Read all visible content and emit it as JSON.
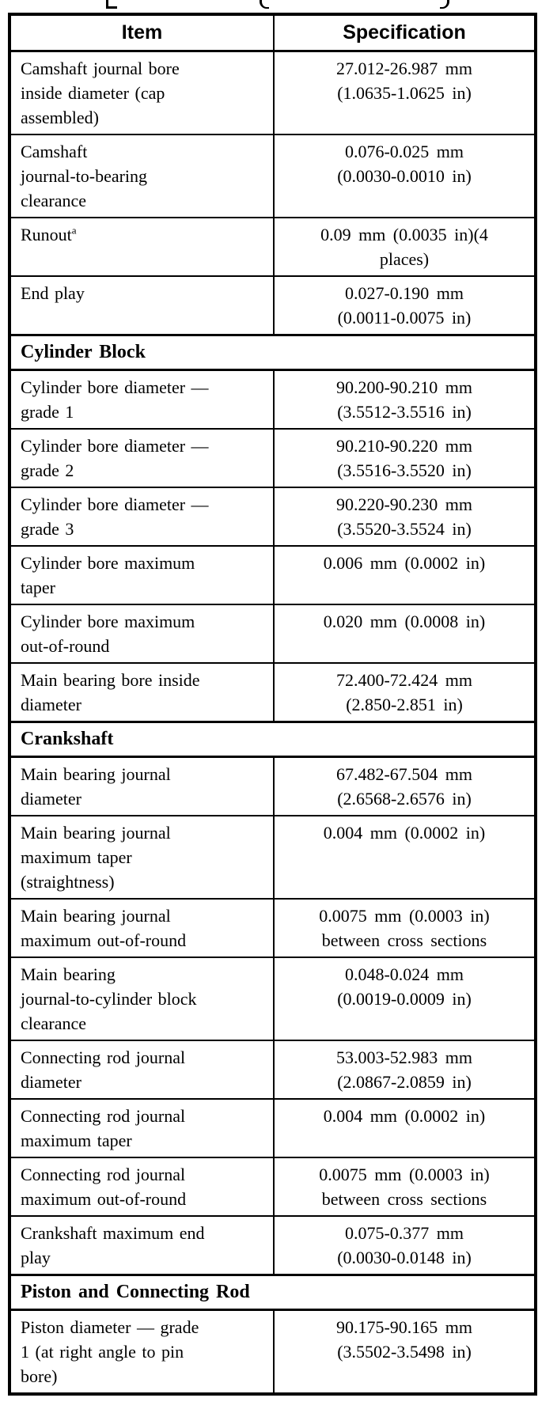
{
  "table": {
    "headers": [
      "Item",
      "Specification"
    ],
    "rows": [
      {
        "type": "data",
        "item": "Camshaft journal bore\ninside diameter (cap\nassembled)",
        "spec": "27.012-26.987 mm\n(1.0635-1.0625 in)"
      },
      {
        "type": "data",
        "item": "Camshaft\njournal-to-bearing\nclearance",
        "spec": "0.076-0.025 mm\n(0.0030-0.0010 in)"
      },
      {
        "type": "data",
        "item": "Runout",
        "superscript": "a",
        "spec": "0.09 mm (0.0035 in)(4\nplaces)"
      },
      {
        "type": "data",
        "item": "End play",
        "spec": "0.027-0.190 mm\n(0.0011-0.0075 in)"
      },
      {
        "type": "section",
        "title": "Cylinder Block"
      },
      {
        "type": "data",
        "item": "Cylinder bore diameter —\ngrade 1",
        "spec": "90.200-90.210 mm\n(3.5512-3.5516 in)"
      },
      {
        "type": "data",
        "item": "Cylinder bore diameter —\ngrade 2",
        "spec": "90.210-90.220 mm\n(3.5516-3.5520 in)"
      },
      {
        "type": "data",
        "item": "Cylinder bore diameter —\ngrade 3",
        "spec": "90.220-90.230 mm\n(3.5520-3.5524 in)"
      },
      {
        "type": "data",
        "item": "Cylinder bore maximum\ntaper",
        "spec": "0.006 mm (0.0002 in)"
      },
      {
        "type": "data",
        "item": "Cylinder bore maximum\nout-of-round",
        "spec": "0.020 mm (0.0008 in)"
      },
      {
        "type": "data",
        "item": "Main bearing bore inside\ndiameter",
        "spec": "72.400-72.424 mm\n(2.850-2.851 in)"
      },
      {
        "type": "section",
        "title": "Crankshaft"
      },
      {
        "type": "data",
        "item": "Main bearing journal\ndiameter",
        "spec": "67.482-67.504 mm\n(2.6568-2.6576 in)"
      },
      {
        "type": "data",
        "item": "Main bearing journal\nmaximum taper\n(straightness)",
        "spec": "0.004 mm (0.0002 in)"
      },
      {
        "type": "data",
        "item": "Main bearing journal\nmaximum out-of-round",
        "spec": "0.0075 mm (0.0003 in)\nbetween cross sections"
      },
      {
        "type": "data",
        "item": "Main bearing\njournal-to-cylinder block\nclearance",
        "spec": "0.048-0.024 mm\n(0.0019-0.0009 in)"
      },
      {
        "type": "data",
        "item": "Connecting rod journal\ndiameter",
        "spec": "53.003-52.983 mm\n(2.0867-2.0859 in)"
      },
      {
        "type": "data",
        "item": "Connecting rod journal\nmaximum taper",
        "spec": "0.004 mm (0.0002 in)"
      },
      {
        "type": "data",
        "item": "Connecting rod journal\nmaximum out-of-round",
        "spec": "0.0075 mm (0.0003 in)\nbetween cross sections"
      },
      {
        "type": "data",
        "item": "Crankshaft maximum end\nplay",
        "spec": "0.075-0.377 mm\n(0.0030-0.0148 in)"
      },
      {
        "type": "section",
        "title": "Piston and Connecting Rod"
      },
      {
        "type": "data",
        "item": "Piston diameter — grade\n1 (at right angle to pin\nbore)",
        "spec": "90.175-90.165 mm\n(3.5502-3.5498 in)"
      }
    ]
  }
}
